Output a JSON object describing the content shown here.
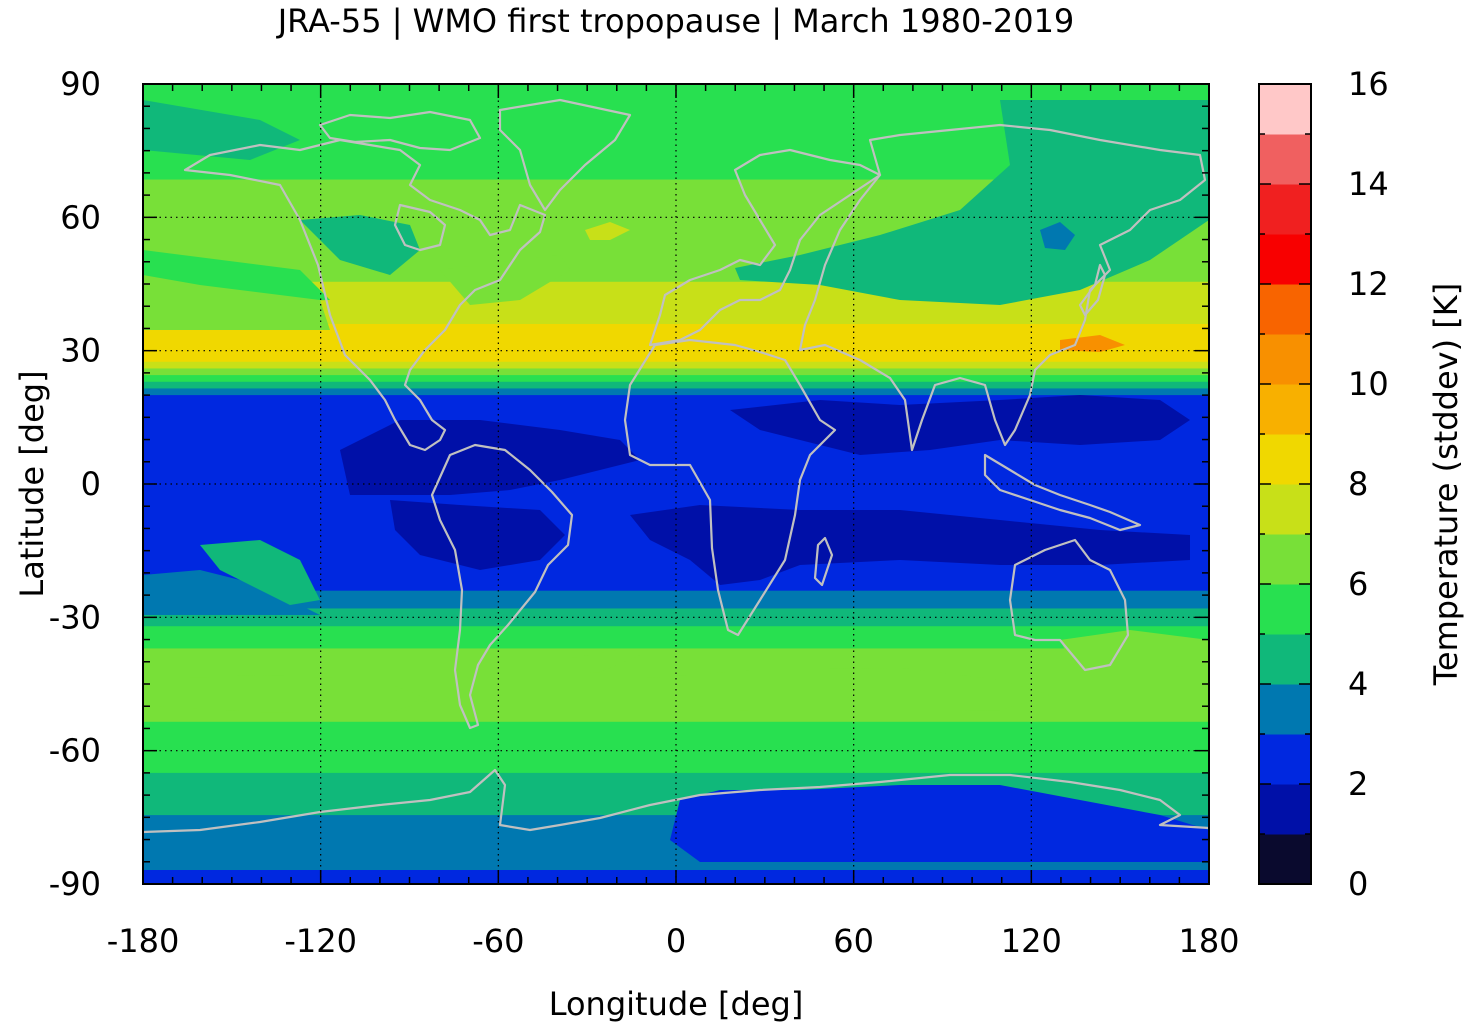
{
  "chart_data": {
    "type": "heatmap",
    "title": "JRA-55 | WMO first tropopause | March 1980-2019",
    "xlabel": "Longitude [deg]",
    "ylabel": "Latitude [deg]",
    "xlim": [
      -180,
      180
    ],
    "ylim": [
      -90,
      90
    ],
    "x_ticks": [
      "-180",
      "-120",
      "-60",
      "0",
      "60",
      "120",
      "180"
    ],
    "y_ticks": [
      "90",
      "60",
      "30",
      "0",
      "-30",
      "-60",
      "-90"
    ],
    "grid": true,
    "colorbar": {
      "label": "Temperature (stddev) [K]",
      "range": [
        0,
        16
      ],
      "ticks": [
        "0",
        "2",
        "4",
        "6",
        "8",
        "10",
        "12",
        "14",
        "16"
      ],
      "levels": [
        0,
        1,
        2,
        3,
        4,
        5,
        6,
        7,
        8,
        9,
        10,
        11,
        12,
        13,
        14,
        15,
        16
      ],
      "colors": [
        "#0a0a2e",
        "#0010a8",
        "#0028e0",
        "#0078b0",
        "#10b87a",
        "#28e050",
        "#78e038",
        "#c8e018",
        "#f0d800",
        "#f8b000",
        "#f89000",
        "#f86400",
        "#f80000",
        "#f02020",
        "#f06060",
        "#ffc8c8"
      ]
    },
    "zonal_pattern": {
      "latitude": [
        90,
        84,
        75,
        65,
        58,
        50,
        42,
        36,
        32,
        29,
        25,
        20,
        15,
        10,
        5,
        0,
        -5,
        -10,
        -15,
        -20,
        -25,
        -30,
        -35,
        -40,
        -45,
        -50,
        -55,
        -60,
        -65,
        -70,
        -75,
        -80,
        -85,
        -90
      ],
      "temperature_stddev": [
        5.5,
        5.2,
        5.6,
        6.2,
        6.3,
        6.6,
        7.3,
        8.0,
        8.9,
        9.0,
        6.5,
        3.0,
        2.2,
        2.0,
        2.2,
        2.4,
        2.1,
        2.0,
        2.1,
        2.3,
        3.2,
        4.5,
        5.8,
        6.3,
        6.6,
        6.4,
        5.8,
        5.3,
        5.0,
        4.6,
        3.9,
        3.4,
        3.1,
        2.7
      ]
    }
  }
}
